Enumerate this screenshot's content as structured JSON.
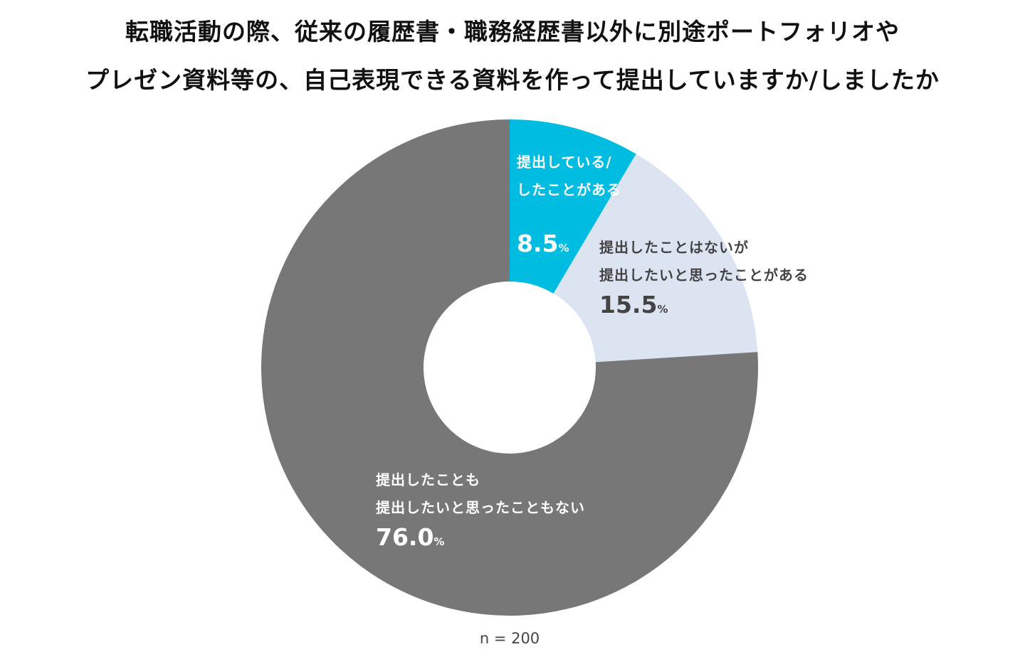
{
  "chart_data": {
    "type": "pie",
    "donut": true,
    "title_lines": [
      "転職活動の際、従来の履歴書・職務経歴書以外に別途ポートフォリオや",
      "プレゼン資料等の、自己表現できる資料を作って提出していますか/しましたか"
    ],
    "slices": [
      {
        "label_lines": [
          "提出している/",
          "したことがある"
        ],
        "value": 8.5,
        "value_text": "8.5",
        "unit": "%",
        "color": "#00BCE0",
        "text_color": "white"
      },
      {
        "label_lines": [
          "提出したことはないが",
          "提出したいと思ったことがある"
        ],
        "value": 15.5,
        "value_text": "15.5",
        "unit": "%",
        "color": "#DCE4F2",
        "text_color": "dark"
      },
      {
        "label_lines": [
          "提出したことも",
          "提出したいと思ったこともない"
        ],
        "value": 76.0,
        "value_text": "76.0",
        "unit": "%",
        "color": "#777777",
        "text_color": "white"
      }
    ],
    "note": "n = 200"
  }
}
